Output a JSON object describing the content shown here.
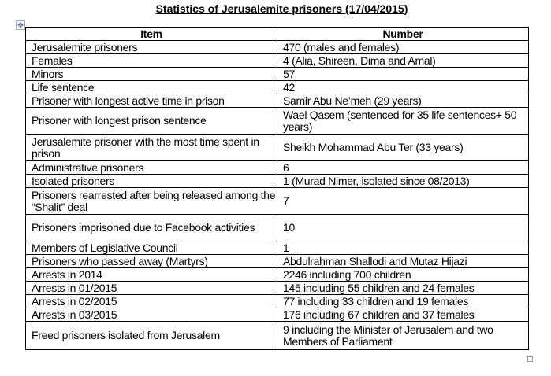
{
  "title": "Statistics of Jerusalemite prisoners (17/04/2015)",
  "icons": {
    "move_handle": "table-move-handle-icon",
    "resize_handle": "table-resize-handle-icon"
  },
  "table": {
    "headers": [
      "Item",
      "Number"
    ],
    "rows": [
      {
        "item": "Jerusalemite prisoners",
        "number": "470 (males and females)",
        "h": "s"
      },
      {
        "item": "Females",
        "number": "4 (Alia, Shireen, Dima and Amal)",
        "h": "s"
      },
      {
        "item": "Minors",
        "number": "57",
        "h": "s"
      },
      {
        "item": "Life sentence",
        "number": "42",
        "h": "s"
      },
      {
        "item": "Prisoner with longest active time in prison",
        "number": "Samir Abu Ne’meh (29 years)",
        "h": "s"
      },
      {
        "item": "Prisoner with longest prison sentence",
        "number": "Wael Qasem (sentenced for 35 life sentences+ 50 years)",
        "h": "d"
      },
      {
        "item": "Jerusalemite prisoner with the most time spent in prison",
        "number": "Sheikh Mohammad Abu Ter (33 years)",
        "h": "d"
      },
      {
        "item": "Administrative prisoners",
        "number": "6",
        "h": "s"
      },
      {
        "item": "Isolated prisoners",
        "number": "1 (Murad Nimer, isolated since 08/2013)",
        "h": "s"
      },
      {
        "item": "Prisoners rearrested after being released among the “Shalit” deal",
        "number": "7",
        "h": "d"
      },
      {
        "item": "Prisoners imprisoned due to Facebook activities",
        "number": "10",
        "h": "d"
      },
      {
        "item": "Members of Legislative Council",
        "number": "1",
        "h": "s"
      },
      {
        "item": "Prisoners who passed away (Martyrs)",
        "number": "Abdulrahman Shallodi and Mutaz Hijazi",
        "h": "s"
      },
      {
        "item": "Arrests in 2014",
        "number": "2246 including 700 children",
        "h": "s"
      },
      {
        "item": "Arrests in 01/2015",
        "number": "145 including 55 children and 24 females",
        "h": "s"
      },
      {
        "item": "Arrests in 02/2015",
        "number": "77 including 33 children and 19 females",
        "h": "s"
      },
      {
        "item": "Arrests in 03/2015",
        "number": "176 including 67 children and 37 females",
        "h": "s"
      },
      {
        "item": "Freed prisoners isolated from Jerusalem",
        "number": "9 including the Minister of Jerusalem and two Members of Parliament",
        "h": "t"
      }
    ]
  }
}
